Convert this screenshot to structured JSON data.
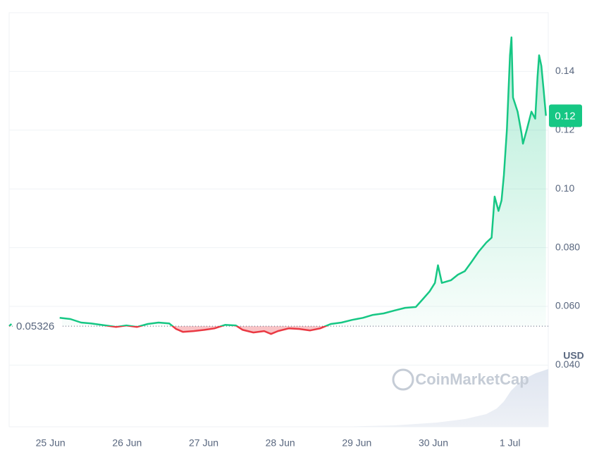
{
  "chart_data": {
    "type": "line",
    "x": [
      -0.54,
      -0.51,
      0.05,
      0.12,
      0.26,
      0.4,
      0.53,
      0.72,
      0.86,
      0.99,
      1.13,
      1.27,
      1.41,
      1.55,
      1.64,
      1.73,
      1.87,
      2.01,
      2.14,
      2.28,
      2.42,
      2.51,
      2.65,
      2.79,
      2.88,
      2.97,
      3.11,
      3.25,
      3.39,
      3.52,
      3.66,
      3.8,
      3.94,
      4.08,
      4.21,
      4.35,
      4.49,
      4.63,
      4.77,
      4.86,
      4.95,
      5.02,
      5.06,
      5.11,
      5.23,
      5.32,
      5.41,
      5.5,
      5.59,
      5.69,
      5.76,
      5.8,
      5.85,
      5.89,
      5.92,
      5.96,
      6.0,
      6.02,
      6.04,
      6.1,
      6.15,
      6.17,
      6.22,
      6.28,
      6.33,
      6.36,
      6.38,
      6.41,
      6.44,
      6.47
    ],
    "values": [
      0.0533,
      0.054,
      null,
      0.0561,
      0.0557,
      0.0545,
      0.0542,
      0.0535,
      0.053,
      0.0535,
      0.053,
      0.054,
      0.0545,
      0.0542,
      0.0523,
      0.0513,
      0.0516,
      0.052,
      0.0525,
      0.0537,
      0.0535,
      0.052,
      0.0511,
      0.0516,
      0.0506,
      0.0516,
      0.0525,
      0.0523,
      0.0518,
      0.0525,
      0.054,
      0.0545,
      0.0554,
      0.0561,
      0.0571,
      0.0576,
      0.0586,
      0.0595,
      0.0598,
      0.0624,
      0.0651,
      0.068,
      0.074,
      0.068,
      0.0689,
      0.0708,
      0.072,
      0.0752,
      0.0786,
      0.0817,
      0.0834,
      0.0974,
      0.0925,
      0.0961,
      0.1046,
      0.1202,
      0.1455,
      0.1516,
      0.1311,
      0.1263,
      0.119,
      0.1154,
      0.1202,
      0.1263,
      0.1239,
      0.1383,
      0.1455,
      0.1419,
      0.1335,
      0.1249
    ],
    "up_color": "#16c784",
    "down_color": "#ea3943",
    "baseline": 0.05326,
    "current_price": {
      "value": 0.1249,
      "label": "0.12"
    },
    "currency": "USD",
    "watermark": "CoinMarketCap",
    "xlim": [
      -0.54,
      6.5
    ],
    "xticks": [
      {
        "value": 0,
        "label": "25 Jun"
      },
      {
        "value": 1,
        "label": "26 Jun"
      },
      {
        "value": 2,
        "label": "27 Jun"
      },
      {
        "value": 3,
        "label": "28 Jun"
      },
      {
        "value": 4,
        "label": "29 Jun"
      },
      {
        "value": 5,
        "label": "30 Jun"
      },
      {
        "value": 6,
        "label": "1 Jul"
      }
    ],
    "ylim": [
      0.019,
      0.16
    ],
    "yticks": [
      {
        "value": 0.04,
        "label": "0.040"
      },
      {
        "value": 0.06,
        "label": "0.060"
      },
      {
        "value": 0.08,
        "label": "0.080"
      },
      {
        "value": 0.1,
        "label": "0.10"
      },
      0.12,
      0.14
    ],
    "grid": true
  }
}
